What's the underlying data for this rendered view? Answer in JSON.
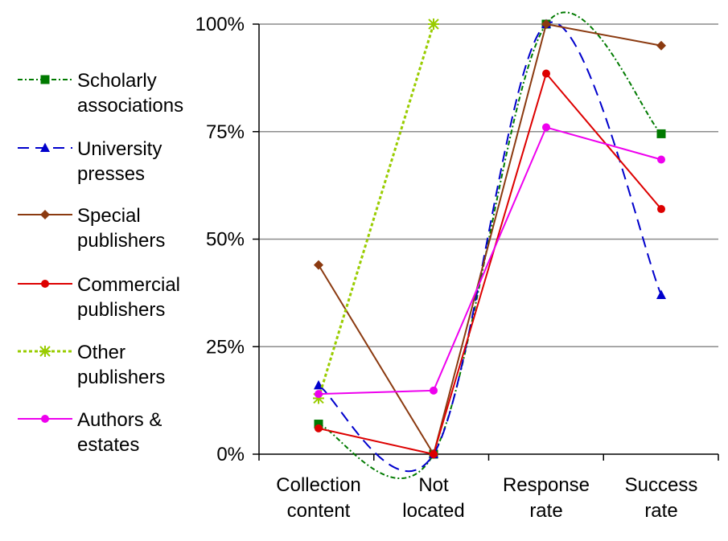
{
  "chart_data": {
    "type": "line",
    "categories": [
      [
        "Collection",
        "content"
      ],
      [
        "Not",
        "located"
      ],
      [
        "Response",
        "rate"
      ],
      [
        "Success",
        "rate"
      ]
    ],
    "ylim": [
      0,
      1
    ],
    "y_ticks": [
      {
        "value": 0,
        "label": "0%"
      },
      {
        "value": 0.25,
        "label": "25%"
      },
      {
        "value": 0.5,
        "label": "50%"
      },
      {
        "value": 0.75,
        "label": "75%"
      },
      {
        "value": 1,
        "label": "100%"
      }
    ],
    "grid": true,
    "legend_position": "left",
    "series": [
      {
        "name": [
          "Scholarly",
          "associations"
        ],
        "color": "#007a00",
        "dash": "6,3,2,3",
        "marker": "square",
        "smooth": true,
        "values": [
          0.07,
          0.0,
          1.0,
          0.745
        ]
      },
      {
        "name": [
          "University",
          "presses"
        ],
        "color": "#0000cc",
        "dash": "14,8",
        "marker": "triangle",
        "smooth": true,
        "values": [
          0.16,
          0.0,
          1.0,
          0.37
        ]
      },
      {
        "name": [
          "Special",
          "publishers"
        ],
        "color": "#8b3a10",
        "dash": "",
        "marker": "diamond",
        "smooth": false,
        "values": [
          0.44,
          0.0,
          1.0,
          0.95
        ]
      },
      {
        "name": [
          "Commercial",
          "publishers"
        ],
        "color": "#dd0000",
        "dash": "",
        "marker": "circle",
        "smooth": false,
        "values": [
          0.06,
          0.0,
          0.885,
          0.57
        ]
      },
      {
        "name": [
          "Other",
          "publishers"
        ],
        "color": "#99cc00",
        "dash": "4,3",
        "marker": "star",
        "smooth": false,
        "values": [
          0.13,
          1.0,
          null,
          null
        ]
      },
      {
        "name": [
          "Authors &",
          "estates"
        ],
        "color": "#ee00ee",
        "dash": "",
        "marker": "circle",
        "smooth": false,
        "values": [
          0.14,
          0.148,
          0.76,
          0.685
        ]
      }
    ]
  }
}
